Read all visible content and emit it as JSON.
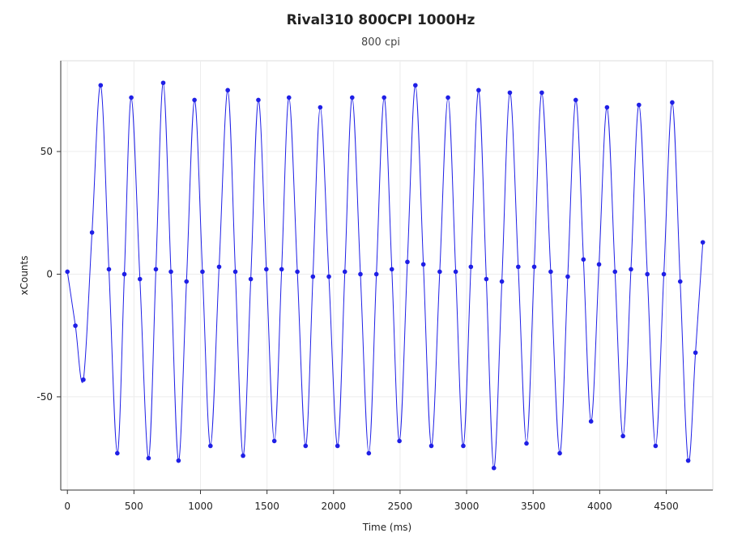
{
  "chart_data": {
    "type": "scatter-line",
    "title": "Rival310 800CPI 1000Hz",
    "subtitle": "800 cpi",
    "x_label": "Time (ms)",
    "y_label": "xCounts",
    "xlim": [
      -50,
      4850
    ],
    "ylim": [
      -88,
      87
    ],
    "xticks": [
      0,
      500,
      1000,
      1500,
      2000,
      2500,
      3000,
      3500,
      4000,
      4500
    ],
    "yticks": [
      -50,
      0,
      50
    ],
    "grid": true,
    "series": [
      {
        "color": "#1f1fe6",
        "x": [
          0,
          60,
          120,
          185,
          250,
          312,
          375,
          428,
          480,
          545,
          610,
          665,
          720,
          778,
          835,
          895,
          955,
          1015,
          1075,
          1140,
          1205,
          1262,
          1320,
          1378,
          1435,
          1495,
          1555,
          1610,
          1665,
          1728,
          1790,
          1845,
          1900,
          1965,
          2030,
          2085,
          2140,
          2202,
          2265,
          2322,
          2380,
          2438,
          2495,
          2555,
          2615,
          2675,
          2735,
          2798,
          2860,
          2918,
          2975,
          3032,
          3090,
          3148,
          3205,
          3265,
          3325,
          3388,
          3450,
          3508,
          3565,
          3632,
          3700,
          3760,
          3820,
          3878,
          3935,
          3995,
          4055,
          4115,
          4175,
          4235,
          4295,
          4358,
          4420,
          4482,
          4545,
          4605,
          4665,
          4720,
          4775
        ],
        "y": [
          1,
          -21,
          -43,
          17,
          77,
          2,
          -73,
          0,
          72,
          -2,
          -75,
          2,
          78,
          1,
          -76,
          -3,
          71,
          1,
          -70,
          3,
          75,
          1,
          -74,
          -2,
          71,
          2,
          -68,
          2,
          72,
          1,
          -70,
          -1,
          68,
          -1,
          -70,
          1,
          72,
          0,
          -73,
          0,
          72,
          2,
          -68,
          5,
          77,
          4,
          -70,
          1,
          72,
          1,
          -70,
          3,
          75,
          -2,
          -79,
          -3,
          74,
          3,
          -69,
          3,
          74,
          1,
          -73,
          -1,
          71,
          6,
          -60,
          4,
          68,
          1,
          -66,
          2,
          69,
          0,
          -70,
          0,
          70,
          -3,
          -76,
          -32,
          13
        ]
      }
    ]
  }
}
